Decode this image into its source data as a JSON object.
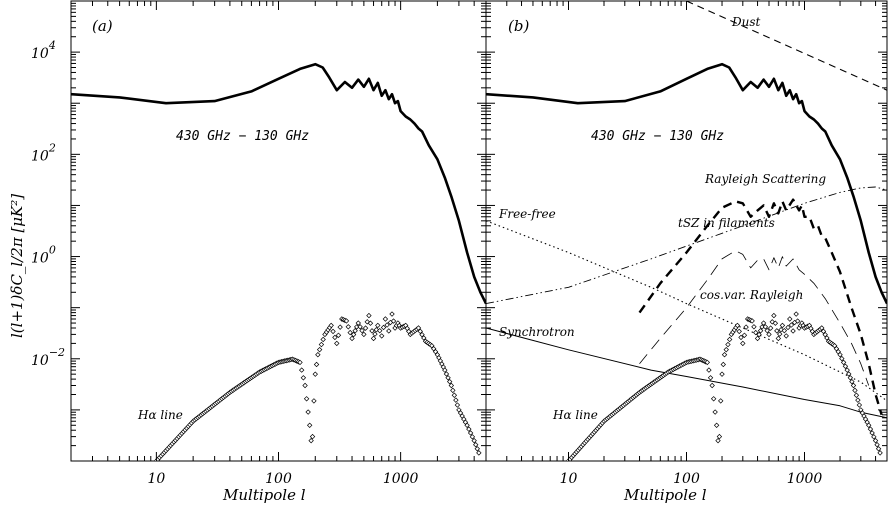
{
  "chart_data": [
    {
      "panel": "a",
      "type": "line",
      "panel_label": "(a)",
      "xlabel": "Multipole l",
      "ylabel": "l(l+1)δC_l/2π [μK²]",
      "xscale": "log",
      "yscale": "log",
      "xlim": [
        2,
        5000
      ],
      "ylim": [
        0.0001,
        100000
      ],
      "x_ticks": [
        10,
        100,
        1000
      ],
      "x_tick_labels": [
        "10",
        "100",
        "1000"
      ],
      "y_ticks": [
        0.01,
        1,
        100,
        10000
      ],
      "y_tick_labels": [
        {
          "base": "10",
          "exp": "−2"
        },
        {
          "base": "10",
          "exp": "0"
        },
        {
          "base": "10",
          "exp": "2"
        },
        {
          "base": "10",
          "exp": "4"
        }
      ],
      "annotations": [
        "430 GHz − 130 GHz",
        "Hα line"
      ],
      "series": [
        {
          "name": "430 GHz − 130 GHz",
          "style": "solid",
          "x": [
            2,
            5,
            12,
            30,
            60,
            100,
            150,
            200,
            230,
            260,
            300,
            350,
            400,
            450,
            500,
            550,
            600,
            650,
            700,
            750,
            800,
            850,
            900,
            950,
            1000,
            1100,
            1200,
            1300,
            1400,
            1500,
            1700,
            2000,
            2300,
            2600,
            3000,
            3500,
            4000,
            4500,
            5000
          ],
          "y": [
            1500,
            1300,
            1000,
            1100,
            1700,
            3000,
            4700,
            5800,
            5000,
            3200,
            1800,
            2600,
            2000,
            2900,
            2100,
            3000,
            1800,
            2500,
            1400,
            1800,
            1200,
            1500,
            1000,
            1100,
            700,
            550,
            480,
            400,
            320,
            280,
            150,
            80,
            35,
            15,
            5,
            1.2,
            0.4,
            0.2,
            0.12
          ]
        },
        {
          "name": "Hα line",
          "style": "diamond-markers",
          "x": [
            8,
            10,
            20,
            40,
            70,
            100,
            130,
            150,
            165,
            180,
            185,
            190,
            195,
            200,
            210,
            240,
            270,
            300,
            330,
            360,
            400,
            450,
            500,
            550,
            600,
            650,
            700,
            750,
            800,
            850,
            900,
            950,
            1000,
            1100,
            1200,
            1400,
            1600,
            1800,
            2000,
            2300,
            2600,
            3000,
            3500,
            4000,
            4500
          ],
          "y": [
            5e-05,
            0.0001,
            0.0006,
            0.0022,
            0.0055,
            0.0085,
            0.0098,
            0.0085,
            0.003,
            0.0005,
            0.00025,
            0.0003,
            0.0015,
            0.005,
            0.012,
            0.03,
            0.045,
            0.02,
            0.06,
            0.055,
            0.025,
            0.05,
            0.03,
            0.07,
            0.025,
            0.045,
            0.028,
            0.06,
            0.035,
            0.075,
            0.04,
            0.05,
            0.04,
            0.045,
            0.03,
            0.04,
            0.022,
            0.018,
            0.012,
            0.006,
            0.003,
            0.001,
            0.0005,
            0.00025,
            0.00012
          ]
        }
      ]
    },
    {
      "panel": "b",
      "type": "line",
      "panel_label": "(b)",
      "xlabel": "Multipole l",
      "xscale": "log",
      "yscale": "log",
      "xlim": [
        2,
        5000
      ],
      "ylim": [
        0.0001,
        100000
      ],
      "x_ticks": [
        10,
        100,
        1000
      ],
      "x_tick_labels": [
        "10",
        "100",
        "1000"
      ],
      "annotations": [
        "Dust",
        "430 GHz − 130 GHz",
        "Rayleigh Scattering",
        "Free-free",
        "tSZ in filaments",
        "cos.var. Rayleigh",
        "Synchrotron",
        "Hα line"
      ],
      "series": [
        {
          "name": "Dust",
          "style": "dashed-thin",
          "x": [
            100,
            5000
          ],
          "y": [
            100000,
            1800
          ]
        },
        {
          "name": "430 GHz − 130 GHz",
          "style": "solid",
          "x": [
            2,
            5,
            12,
            30,
            60,
            100,
            150,
            200,
            230,
            260,
            300,
            350,
            400,
            450,
            500,
            550,
            600,
            650,
            700,
            750,
            800,
            850,
            900,
            950,
            1000,
            1100,
            1200,
            1300,
            1400,
            1500,
            1700,
            2000,
            2300,
            2600,
            3000,
            3500,
            4000,
            4500,
            5000
          ],
          "y": [
            1500,
            1300,
            1000,
            1100,
            1700,
            3000,
            4700,
            5800,
            5000,
            3200,
            1800,
            2600,
            2000,
            2900,
            2100,
            3000,
            1800,
            2500,
            1400,
            1800,
            1200,
            1500,
            1000,
            1100,
            700,
            550,
            480,
            400,
            320,
            280,
            150,
            80,
            35,
            15,
            5,
            1.2,
            0.4,
            0.2,
            0.12
          ]
        },
        {
          "name": "Rayleigh Scattering",
          "style": "dash-dot",
          "x": [
            2,
            10,
            50,
            100,
            300,
            1000,
            2000,
            3000,
            4000,
            5000
          ],
          "y": [
            0.12,
            0.25,
            0.9,
            1.6,
            4,
            11,
            18,
            22,
            23,
            20
          ]
        },
        {
          "name": "Free-free",
          "style": "dotted",
          "x": [
            2,
            10,
            50,
            100,
            300,
            1000,
            2000,
            3000,
            5000
          ],
          "y": [
            5,
            1.2,
            0.25,
            0.12,
            0.04,
            0.012,
            0.0055,
            0.0035,
            0.0015
          ]
        },
        {
          "name": "tSZ in filaments",
          "style": "dashed-thick",
          "x": [
            40,
            60,
            100,
            150,
            200,
            260,
            300,
            350,
            400,
            450,
            500,
            550,
            600,
            650,
            700,
            800,
            900,
            950,
            1000,
            1100,
            1200,
            1300,
            1400,
            1500,
            1700,
            2000,
            2500,
            3000,
            3500,
            4000,
            4500
          ],
          "y": [
            0.08,
            0.3,
            1.2,
            4,
            9,
            12,
            11,
            6,
            8,
            10,
            6,
            11,
            7,
            12,
            8,
            13,
            8,
            10,
            6,
            6,
            3.5,
            4,
            2.5,
            2.3,
            1.2,
            0.5,
            0.1,
            0.03,
            0.008,
            0.002,
            0.0008
          ]
        },
        {
          "name": "cos.var. Rayleigh",
          "style": "dashed-long-thin",
          "x": [
            40,
            60,
            100,
            150,
            200,
            260,
            300,
            350,
            400,
            450,
            500,
            550,
            600,
            650,
            700,
            800,
            900,
            1000,
            1200,
            1500,
            2000,
            2500,
            3000,
            3500
          ],
          "y": [
            0.008,
            0.025,
            0.1,
            0.35,
            0.9,
            1.3,
            1.1,
            0.6,
            0.85,
            0.9,
            0.55,
            0.95,
            0.6,
            1.0,
            0.65,
            0.9,
            0.55,
            0.45,
            0.3,
            0.15,
            0.05,
            0.02,
            0.008,
            0.003
          ]
        },
        {
          "name": "Synchrotron",
          "style": "solid-thin",
          "x": [
            2,
            10,
            50,
            100,
            300,
            1000,
            2000,
            3000,
            5000
          ],
          "y": [
            0.04,
            0.015,
            0.006,
            0.0045,
            0.0028,
            0.0016,
            0.0012,
            0.0009,
            0.0007
          ]
        },
        {
          "name": "Hα line",
          "style": "diamond-markers",
          "x": [
            8,
            10,
            20,
            40,
            70,
            100,
            130,
            150,
            165,
            180,
            185,
            190,
            195,
            200,
            210,
            240,
            270,
            300,
            330,
            360,
            400,
            450,
            500,
            550,
            600,
            650,
            700,
            750,
            800,
            850,
            900,
            950,
            1000,
            1100,
            1200,
            1400,
            1600,
            1800,
            2000,
            2300,
            2600,
            3000,
            3500,
            4000,
            4500
          ],
          "y": [
            5e-05,
            0.0001,
            0.0006,
            0.0022,
            0.0055,
            0.0085,
            0.0098,
            0.0085,
            0.003,
            0.0005,
            0.00025,
            0.0003,
            0.0015,
            0.005,
            0.012,
            0.03,
            0.045,
            0.02,
            0.06,
            0.055,
            0.025,
            0.05,
            0.03,
            0.07,
            0.025,
            0.045,
            0.028,
            0.06,
            0.035,
            0.075,
            0.04,
            0.05,
            0.04,
            0.045,
            0.03,
            0.04,
            0.022,
            0.018,
            0.012,
            0.006,
            0.003,
            0.001,
            0.0005,
            0.00025,
            0.00012
          ]
        }
      ]
    }
  ]
}
